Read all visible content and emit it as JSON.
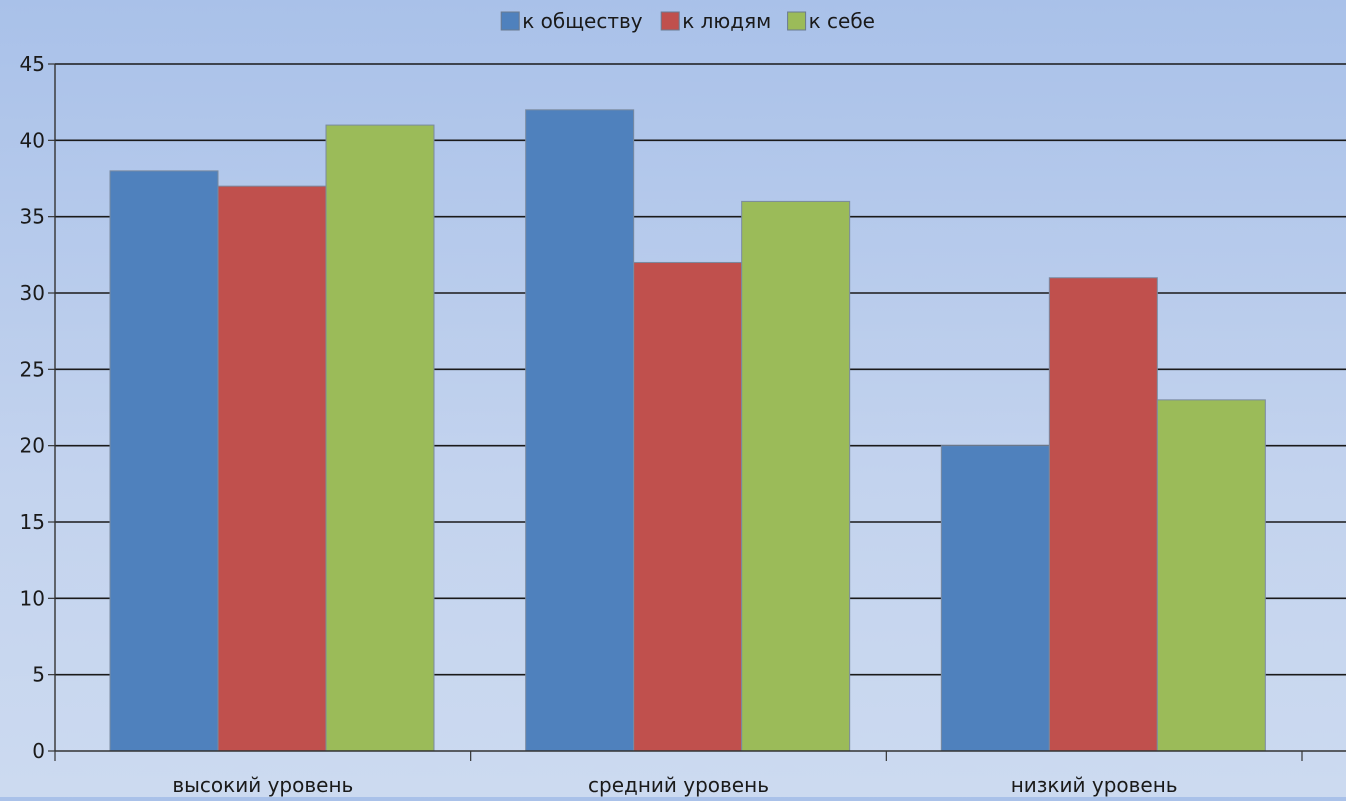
{
  "chart_data": {
    "type": "bar",
    "title": "",
    "xlabel": "",
    "ylabel": "",
    "categories": [
      "высокий уровень",
      "средний уровень",
      "низкий уровень"
    ],
    "series": [
      {
        "name": "к обществу",
        "color": "#4f81bd",
        "values": [
          38,
          42,
          20
        ]
      },
      {
        "name": "к людям",
        "color": "#c0504d",
        "values": [
          37,
          32,
          31
        ]
      },
      {
        "name": "к себе",
        "color": "#9bbb59",
        "values": [
          41,
          36,
          23
        ]
      }
    ],
    "ylim": [
      0,
      45
    ],
    "yticks": [
      0,
      5,
      10,
      15,
      20,
      25,
      30,
      35,
      40,
      45
    ],
    "grid": true,
    "legend_position": "top-center"
  }
}
